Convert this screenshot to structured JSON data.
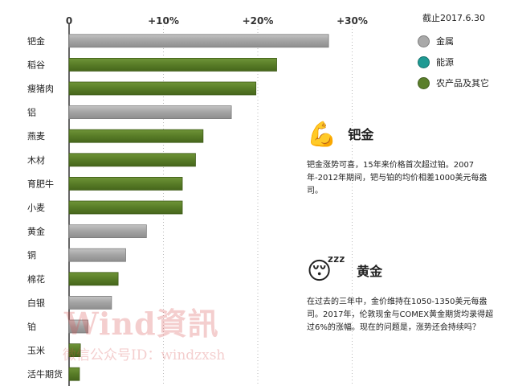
{
  "chart_data": {
    "type": "bar",
    "orientation": "horizontal",
    "x_ticks": [
      "0",
      "+10%",
      "+20%",
      "+30%"
    ],
    "xlim": [
      0,
      32
    ],
    "categories": [
      "钯金",
      "稻谷",
      "瘦猪肉",
      "铝",
      "燕麦",
      "木材",
      "育肥牛",
      "小麦",
      "黄金",
      "铜",
      "棉花",
      "白银",
      "铂",
      "玉米",
      "活牛期货"
    ],
    "values": [
      27.5,
      22.0,
      19.8,
      17.2,
      14.2,
      13.4,
      12.0,
      12.0,
      8.2,
      6.0,
      5.2,
      4.5,
      2.0,
      1.2,
      1.1
    ],
    "groups": [
      "金属",
      "农产品及其它",
      "农产品及其它",
      "金属",
      "农产品及其它",
      "农产品及其它",
      "农产品及其它",
      "农产品及其它",
      "金属",
      "金属",
      "农产品及其它",
      "金属",
      "金属",
      "农产品及其它",
      "农产品及其它"
    ],
    "legend_placement": "top-right",
    "grid": "vertical dotted",
    "xlabel": "",
    "ylabel": ""
  },
  "legend": {
    "date": "截止2017.6.30",
    "items": [
      {
        "label": "金属",
        "color": "#a9a9a9"
      },
      {
        "label": "能源",
        "color": "#1f9a93"
      },
      {
        "label": "农产品及其它",
        "color": "#5b7f2b"
      }
    ]
  },
  "notes": {
    "palladium": {
      "icon": "flexed-biceps-icon",
      "emoji": "💪",
      "title": "钯金",
      "body": "钯金涨势可喜，15年来价格首次超过铂。2007年-2012年期间，钯与铂的均价相差1000美元每盎司。"
    },
    "gold": {
      "icon": "sleeping-face-icon",
      "emoji": "😴",
      "title": "黄金",
      "body": "在过去的三年中，金价维持在1050-1350美元每盎司。2017年，伦敦现金与COMEX黄金期货均录得超过6%的涨幅。现在的问题是，涨势还会持续吗？"
    }
  },
  "watermark": {
    "line1": "Wind資訊",
    "line2": "微信公众号ID：windzxsh"
  }
}
